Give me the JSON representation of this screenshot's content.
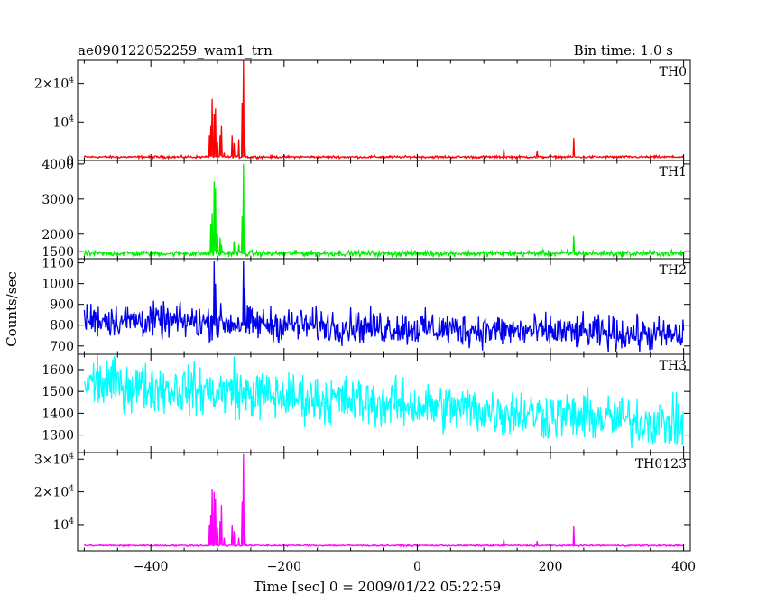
{
  "chart_data": {
    "type": "line",
    "title": "ae090122052259_wam1_trn",
    "subtitle": "Bin time: 1.0 s",
    "xlabel": "Time [sec] 0 = 2009/01/22 05:22:59",
    "ylabel": "Counts/sec",
    "xlim": [
      -510,
      410
    ],
    "x_ticks": [
      -400,
      -200,
      0,
      200,
      400
    ],
    "x_tick_labels": [
      "−400",
      "−200",
      "0",
      "200",
      "400"
    ],
    "grid": false,
    "panels": [
      {
        "name": "TH0",
        "color": "#ff0000",
        "ylim": [
          0,
          26000
        ],
        "y_ticks": [
          0,
          10000,
          20000
        ],
        "y_tick_labels": [
          {
            "base": "0",
            "exp": ""
          },
          {
            "base": "10",
            "exp": "4"
          },
          {
            "base": "2×10",
            "exp": "4"
          }
        ],
        "baseline": 900,
        "noise": 150,
        "trend": 0,
        "peaks": [
          [
            -312,
            6500
          ],
          [
            -310,
            9000
          ],
          [
            -308,
            16000
          ],
          [
            -305,
            12000
          ],
          [
            -303,
            13500
          ],
          [
            -300,
            5000
          ],
          [
            -296,
            6500
          ],
          [
            -294,
            9000
          ],
          [
            -290,
            2000
          ],
          [
            -278,
            6500
          ],
          [
            -275,
            4500
          ],
          [
            -268,
            5500
          ],
          [
            -263,
            15000
          ],
          [
            -261,
            26000
          ],
          [
            -259,
            5000
          ],
          [
            130,
            3000
          ],
          [
            180,
            2500
          ],
          [
            235,
            5800
          ]
        ]
      },
      {
        "name": "TH1",
        "color": "#00ee00",
        "ylim": [
          1300,
          4100
        ],
        "y_ticks": [
          1500,
          2000,
          3000,
          4000
        ],
        "y_tick_labels": [
          {
            "base": "1500",
            "exp": ""
          },
          {
            "base": "2000",
            "exp": ""
          },
          {
            "base": "3000",
            "exp": ""
          },
          {
            "base": "4000",
            "exp": ""
          }
        ],
        "baseline": 1450,
        "noise": 40,
        "trend": 0,
        "peaks": [
          [
            -310,
            2300
          ],
          [
            -308,
            2600
          ],
          [
            -305,
            3500
          ],
          [
            -303,
            3300
          ],
          [
            -300,
            2000
          ],
          [
            -296,
            1900
          ],
          [
            -294,
            1700
          ],
          [
            -275,
            1800
          ],
          [
            -268,
            1700
          ],
          [
            -263,
            2500
          ],
          [
            -261,
            4000
          ],
          [
            -259,
            1800
          ],
          [
            130,
            1550
          ],
          [
            235,
            1950
          ]
        ]
      },
      {
        "name": "TH2",
        "color": "#0000ee",
        "ylim": [
          660,
          1120
        ],
        "y_ticks": [
          700,
          800,
          900,
          1000,
          1100
        ],
        "y_tick_labels": [
          {
            "base": "700",
            "exp": ""
          },
          {
            "base": "800",
            "exp": ""
          },
          {
            "base": "900",
            "exp": ""
          },
          {
            "base": "1000",
            "exp": ""
          },
          {
            "base": "1100",
            "exp": ""
          }
        ],
        "baseline": 830,
        "noise": 40,
        "trend": -80,
        "peaks": [
          [
            -305,
            1110
          ],
          [
            -303,
            1000
          ],
          [
            -261,
            1110
          ],
          [
            -259,
            980
          ]
        ]
      },
      {
        "name": "TH3",
        "color": "#00ffff",
        "ylim": [
          1220,
          1670
        ],
        "y_ticks": [
          1300,
          1400,
          1500,
          1600
        ],
        "y_tick_labels": [
          {
            "base": "1300",
            "exp": ""
          },
          {
            "base": "1400",
            "exp": ""
          },
          {
            "base": "1500",
            "exp": ""
          },
          {
            "base": "1600",
            "exp": ""
          }
        ],
        "baseline": 1540,
        "noise": 55,
        "trend": -190,
        "peaks": [
          [
            -480,
            1670
          ],
          [
            -455,
            1660
          ],
          [
            -275,
            1660
          ]
        ]
      },
      {
        "name": "TH0123",
        "color": "#ff00ff",
        "ylim": [
          2000,
          32000
        ],
        "y_ticks": [
          10000,
          20000,
          30000
        ],
        "y_tick_labels": [
          {
            "base": "10",
            "exp": "4"
          },
          {
            "base": "2×10",
            "exp": "4"
          },
          {
            "base": "3×10",
            "exp": "4"
          }
        ],
        "baseline": 3600,
        "noise": 120,
        "trend": 0,
        "peaks": [
          [
            -312,
            10000
          ],
          [
            -310,
            13000
          ],
          [
            -308,
            21000
          ],
          [
            -305,
            20000
          ],
          [
            -303,
            18000
          ],
          [
            -300,
            9000
          ],
          [
            -296,
            11000
          ],
          [
            -294,
            16000
          ],
          [
            -290,
            6000
          ],
          [
            -278,
            10000
          ],
          [
            -275,
            8000
          ],
          [
            -268,
            6000
          ],
          [
            -263,
            17000
          ],
          [
            -261,
            31500
          ],
          [
            -259,
            8000
          ],
          [
            130,
            5500
          ],
          [
            180,
            5000
          ],
          [
            235,
            9500
          ]
        ]
      }
    ]
  }
}
